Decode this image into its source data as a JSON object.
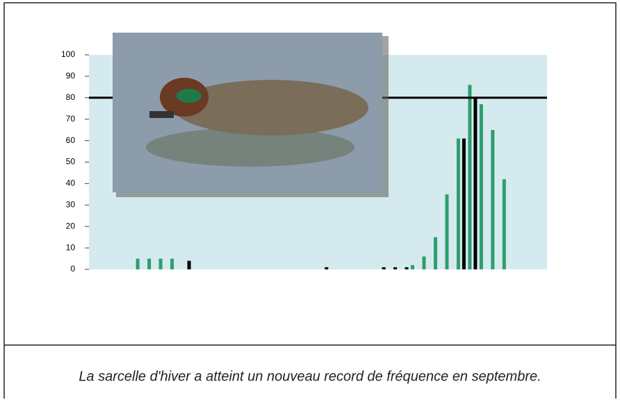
{
  "chart_data": {
    "type": "bar",
    "caption": "La sarcelle d'hiver a atteint un nouveau record de fréquence en septembre.",
    "categories": [
      null,
      null,
      null,
      null,
      null,
      null,
      null,
      null,
      null,
      null,
      null,
      null,
      null,
      null,
      null,
      null,
      null,
      null,
      null,
      null,
      null,
      null,
      null,
      null,
      null,
      null,
      null,
      null,
      null,
      null,
      null,
      null,
      null,
      null,
      null,
      null,
      null,
      null,
      null,
      null
    ],
    "series": [
      {
        "color": "#2e9e6e",
        "values": [
          null,
          null,
          null,
          null,
          5,
          5,
          5,
          5,
          null,
          null,
          null,
          null,
          null,
          null,
          null,
          null,
          null,
          null,
          null,
          null,
          null,
          null,
          null,
          null,
          null,
          null,
          null,
          null,
          2,
          6,
          15,
          35,
          61,
          86,
          77,
          65,
          42,
          null,
          null,
          null
        ]
      },
      {
        "color": "#000000",
        "values": [
          null,
          null,
          null,
          null,
          null,
          null,
          null,
          null,
          4,
          null,
          null,
          null,
          null,
          null,
          null,
          null,
          null,
          null,
          null,
          null,
          1,
          null,
          null,
          null,
          null,
          1,
          1,
          1,
          null,
          null,
          null,
          null,
          61,
          80,
          null,
          null,
          null,
          null,
          null,
          null
        ]
      }
    ],
    "reference_line": 80,
    "ylim": [
      0,
      100
    ],
    "yticks": [
      0,
      10,
      20,
      30,
      40,
      50,
      60,
      70,
      80,
      90,
      100
    ],
    "plot_background": "#d5eaee"
  }
}
